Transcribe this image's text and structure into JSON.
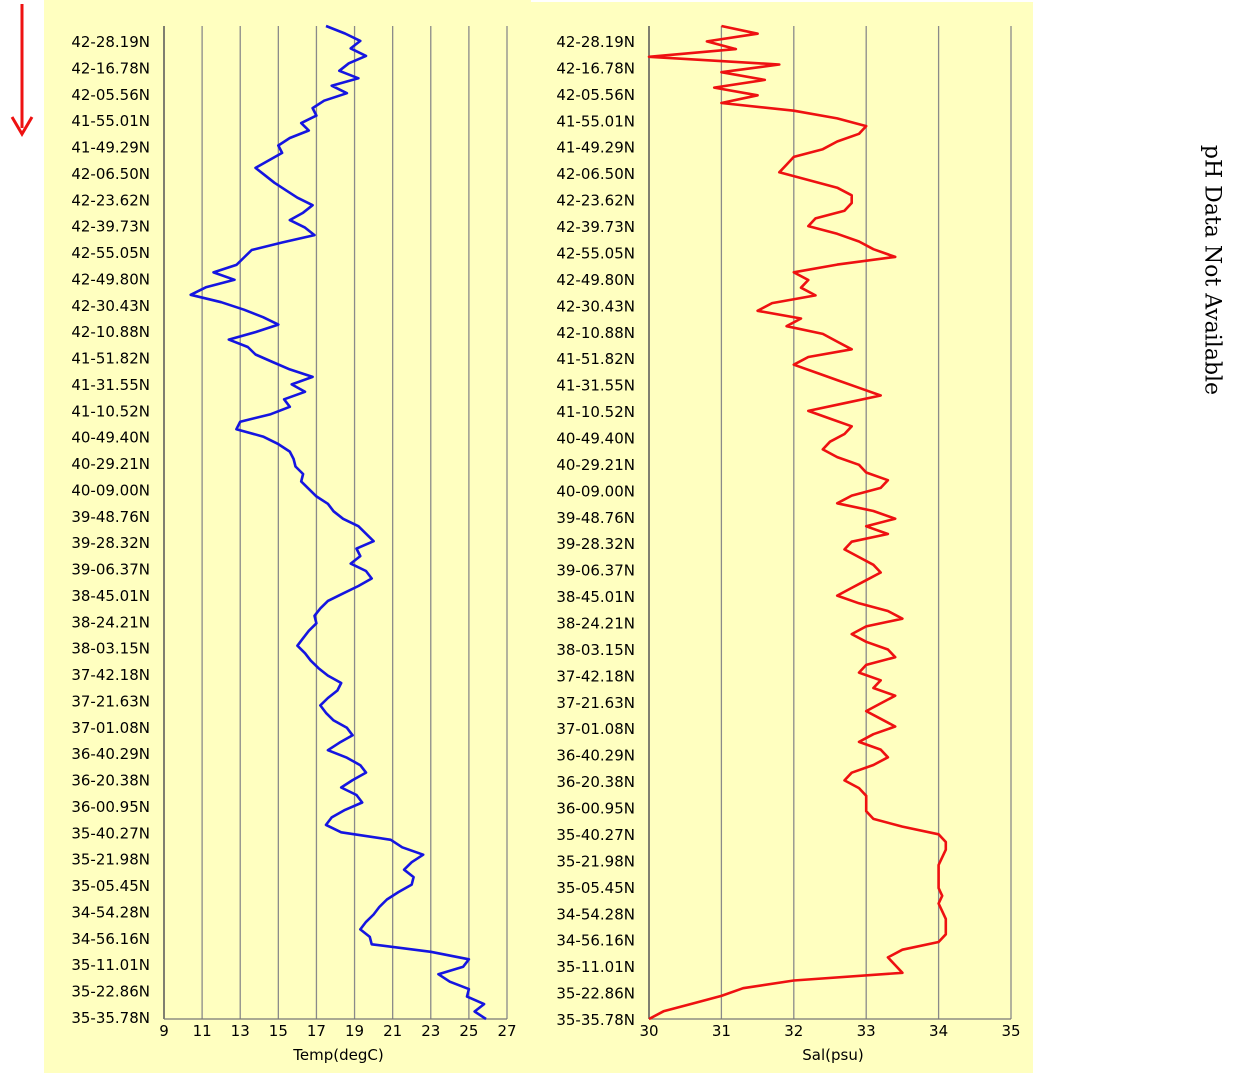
{
  "note": "pH Data Not Available",
  "indicator": {
    "icon": "down-arrow-icon",
    "color": "#ee1111"
  },
  "chart_data": [
    {
      "type": "line",
      "xlabel": "Temp(degC)",
      "ylabel": "",
      "xlim": [
        9,
        27
      ],
      "xticks": [
        9,
        11,
        13,
        15,
        17,
        19,
        21,
        23,
        25,
        27
      ],
      "yticks": [
        "42-28.19N",
        "42-16.78N",
        "42-05.56N",
        "41-55.01N",
        "41-49.29N",
        "42-06.50N",
        "42-23.62N",
        "42-39.73N",
        "42-55.05N",
        "42-49.80N",
        "42-30.43N",
        "42-10.88N",
        "41-51.82N",
        "41-31.55N",
        "41-10.52N",
        "40-49.40N",
        "40-29.21N",
        "40-09.00N",
        "39-48.76N",
        "39-28.32N",
        "39-06.37N",
        "38-45.01N",
        "38-24.21N",
        "38-03.15N",
        "37-42.18N",
        "37-21.63N",
        "37-01.08N",
        "36-40.29N",
        "36-20.38N",
        "36-00.95N",
        "35-40.27N",
        "35-21.98N",
        "35-05.45N",
        "34-54.28N",
        "34-56.16N",
        "35-11.01N",
        "35-22.86N",
        "35-35.78N"
      ],
      "grid": true,
      "color": "#1515e0",
      "series": [
        {
          "values": [
            17.5,
            18.5,
            19.3,
            18.8,
            19.6,
            18.7,
            18.2,
            19.2,
            17.8,
            18.6,
            17.4,
            16.8,
            17.0,
            16.2,
            16.6,
            15.6,
            15.0,
            15.2,
            14.5,
            13.8,
            14.3,
            14.8,
            15.4,
            16.0,
            16.8,
            16.3,
            15.6,
            16.4,
            16.9,
            15.2,
            13.6,
            13.2,
            12.8,
            11.6,
            12.7,
            11.2,
            10.4,
            12.0,
            13.2,
            14.2,
            15.0,
            13.8,
            12.4,
            13.4,
            13.8,
            14.7,
            15.6,
            16.8,
            15.7,
            16.4,
            15.3,
            15.6,
            14.6,
            13.0,
            12.8,
            14.2,
            15.0,
            15.6,
            15.8,
            15.9,
            16.3,
            16.2,
            16.6,
            17.0,
            17.6,
            17.9,
            18.4,
            19.2,
            19.6,
            20.0,
            19.1,
            19.3,
            18.8,
            19.6,
            19.9,
            19.2,
            18.4,
            17.6,
            17.2,
            16.9,
            17.0,
            16.6,
            16.3,
            16.0,
            16.4,
            16.7,
            17.1,
            17.6,
            18.3,
            18.1,
            17.6,
            17.2,
            17.5,
            17.9,
            18.6,
            18.9,
            18.2,
            17.6,
            18.6,
            19.3,
            19.6,
            18.9,
            18.3,
            19.1,
            19.4,
            18.5,
            17.8,
            17.5,
            18.3,
            20.9,
            21.5,
            22.6,
            22.0,
            21.6,
            22.1,
            22.0,
            21.3,
            20.7,
            20.3,
            20.0,
            19.6,
            19.3,
            19.8,
            19.9,
            23.0,
            25.0,
            24.7,
            23.4,
            24.0,
            25.0,
            24.9,
            25.8,
            25.3,
            25.9
          ]
        }
      ]
    },
    {
      "type": "line",
      "xlabel": "Sal(psu)",
      "ylabel": "",
      "xlim": [
        30,
        35
      ],
      "xticks": [
        30,
        31,
        32,
        33,
        34,
        35
      ],
      "yticks": [
        "42-28.19N",
        "42-16.78N",
        "42-05.56N",
        "41-55.01N",
        "41-49.29N",
        "42-06.50N",
        "42-23.62N",
        "42-39.73N",
        "42-55.05N",
        "42-49.80N",
        "42-30.43N",
        "42-10.88N",
        "41-51.82N",
        "41-31.55N",
        "41-10.52N",
        "40-49.40N",
        "40-29.21N",
        "40-09.00N",
        "39-48.76N",
        "39-28.32N",
        "39-06.37N",
        "38-45.01N",
        "38-24.21N",
        "38-03.15N",
        "37-42.18N",
        "37-21.63N",
        "37-01.08N",
        "36-40.29N",
        "36-20.38N",
        "36-00.95N",
        "35-40.27N",
        "35-21.98N",
        "35-05.45N",
        "34-54.28N",
        "34-56.16N",
        "35-11.01N",
        "35-22.86N",
        "35-35.78N"
      ],
      "grid": true,
      "color": "#ee1111",
      "series": [
        {
          "values": [
            31.0,
            31.5,
            30.8,
            31.2,
            30.0,
            31.8,
            31.0,
            31.6,
            30.9,
            31.5,
            31.0,
            32.0,
            32.6,
            33.0,
            32.9,
            32.6,
            32.4,
            32.0,
            31.9,
            31.8,
            32.2,
            32.6,
            32.8,
            32.8,
            32.7,
            32.3,
            32.2,
            32.6,
            32.9,
            33.1,
            33.4,
            32.6,
            32.0,
            32.2,
            32.1,
            32.3,
            31.7,
            31.5,
            32.1,
            31.9,
            32.4,
            32.6,
            32.8,
            32.2,
            32.0,
            32.3,
            32.6,
            32.9,
            33.2,
            32.7,
            32.2,
            32.5,
            32.8,
            32.7,
            32.5,
            32.4,
            32.6,
            32.9,
            33.0,
            33.3,
            33.2,
            32.8,
            32.6,
            33.1,
            33.4,
            33.0,
            33.3,
            32.8,
            32.7,
            32.9,
            33.1,
            33.2,
            33.0,
            32.8,
            32.6,
            32.9,
            33.3,
            33.5,
            33.0,
            32.8,
            33.0,
            33.3,
            33.4,
            33.0,
            32.9,
            33.2,
            33.1,
            33.4,
            33.2,
            33.0,
            33.2,
            33.4,
            33.1,
            32.9,
            33.2,
            33.3,
            33.1,
            32.8,
            32.7,
            32.9,
            33.0,
            33.0,
            33.0,
            33.1,
            33.5,
            34.0,
            34.1,
            34.1,
            34.05,
            34.0,
            34.0,
            34.0,
            34.0,
            34.05,
            34.0,
            34.05,
            34.1,
            34.1,
            34.1,
            34.0,
            33.5,
            33.3,
            33.4,
            33.5,
            32.0,
            31.3,
            31.0,
            30.6,
            30.2,
            30.0
          ]
        }
      ]
    }
  ]
}
